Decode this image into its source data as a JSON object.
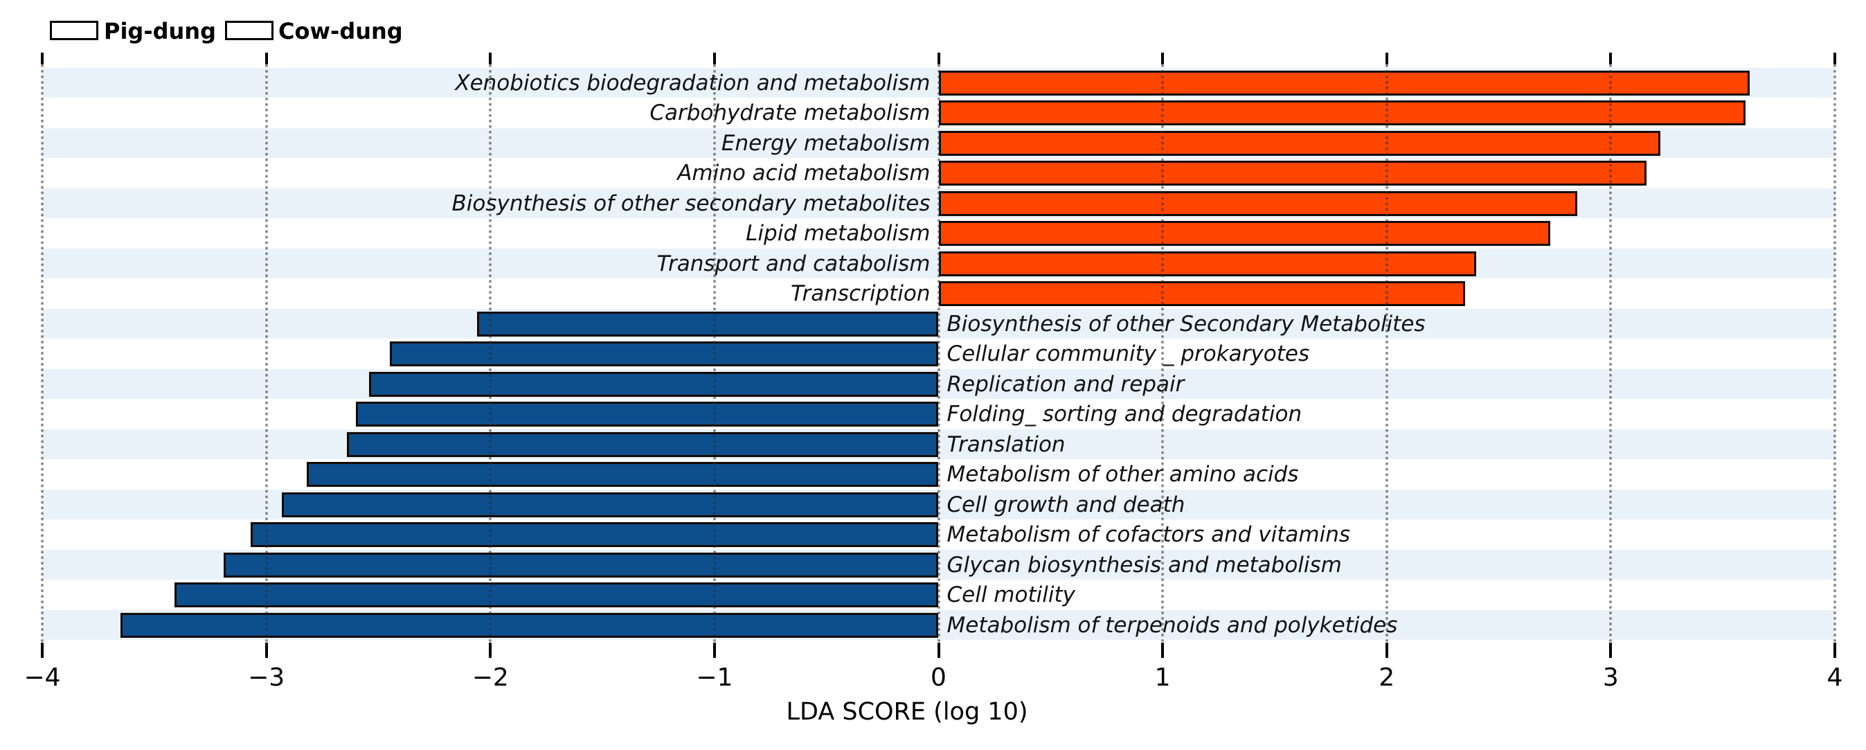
{
  "figure": {
    "background": "#ffffff"
  },
  "legend": {
    "items": [
      {
        "label": "Pig-dung",
        "color": "#0d4e8d"
      },
      {
        "label": "Cow-dung",
        "color": "#ff4500"
      }
    ]
  },
  "chart_data": {
    "type": "bar",
    "orientation": "horizontal",
    "title": "",
    "xlabel": "LDA SCORE (log 10)",
    "xlim": [
      -4,
      4
    ],
    "xticks": [
      -4,
      -3,
      -2,
      -1,
      0,
      1,
      2,
      3,
      4
    ],
    "grid": {
      "vertical_dotted_at_integer_ticks": true,
      "row_shading": "alternate light blue"
    },
    "legend_position": "top-left",
    "bar_border_color": "#140a02",
    "band_color": "rgba(176,207,229,0.28)",
    "series": [
      {
        "name": "Cow-dung",
        "color": "#ff4500",
        "sign": "positive"
      },
      {
        "name": "Pig-dung",
        "color": "#0d4e8d",
        "sign": "negative"
      }
    ],
    "rows": [
      {
        "label": "Xenobiotics biodegradation and metabolism",
        "group": "Cow-dung",
        "value": 3.62
      },
      {
        "label": "Carbohydrate metabolism",
        "group": "Cow-dung",
        "value": 3.6
      },
      {
        "label": "Energy metabolism",
        "group": "Cow-dung",
        "value": 3.22
      },
      {
        "label": "Amino acid metabolism",
        "group": "Cow-dung",
        "value": 3.16
      },
      {
        "label": "Biosynthesis of other secondary metabolites",
        "group": "Cow-dung",
        "value": 2.85
      },
      {
        "label": "Lipid metabolism",
        "group": "Cow-dung",
        "value": 2.73
      },
      {
        "label": "Transport and catabolism",
        "group": "Cow-dung",
        "value": 2.4
      },
      {
        "label": "Transcription",
        "group": "Cow-dung",
        "value": 2.35
      },
      {
        "label": "Biosynthesis of other Secondary Metabolites",
        "group": "Pig-dung",
        "value": -2.06
      },
      {
        "label": "Cellular community _ prokaryotes",
        "group": "Pig-dung",
        "value": -2.45
      },
      {
        "label": "Replication and repair",
        "group": "Pig-dung",
        "value": -2.54
      },
      {
        "label": "Folding_ sorting and degradation",
        "group": "Pig-dung",
        "value": -2.6
      },
      {
        "label": "Translation",
        "group": "Pig-dung",
        "value": -2.64
      },
      {
        "label": "Metabolism of other amino acids",
        "group": "Pig-dung",
        "value": -2.82
      },
      {
        "label": "Cell growth and death",
        "group": "Pig-dung",
        "value": -2.93
      },
      {
        "label": "Metabolism of cofactors and vitamins",
        "group": "Pig-dung",
        "value": -3.07
      },
      {
        "label": "Glycan biosynthesis and metabolism",
        "group": "Pig-dung",
        "value": -3.19
      },
      {
        "label": "Cell motility",
        "group": "Pig-dung",
        "value": -3.41
      },
      {
        "label": "Metabolism of terpenoids and polyketides",
        "group": "Pig-dung",
        "value": -3.65
      }
    ]
  }
}
